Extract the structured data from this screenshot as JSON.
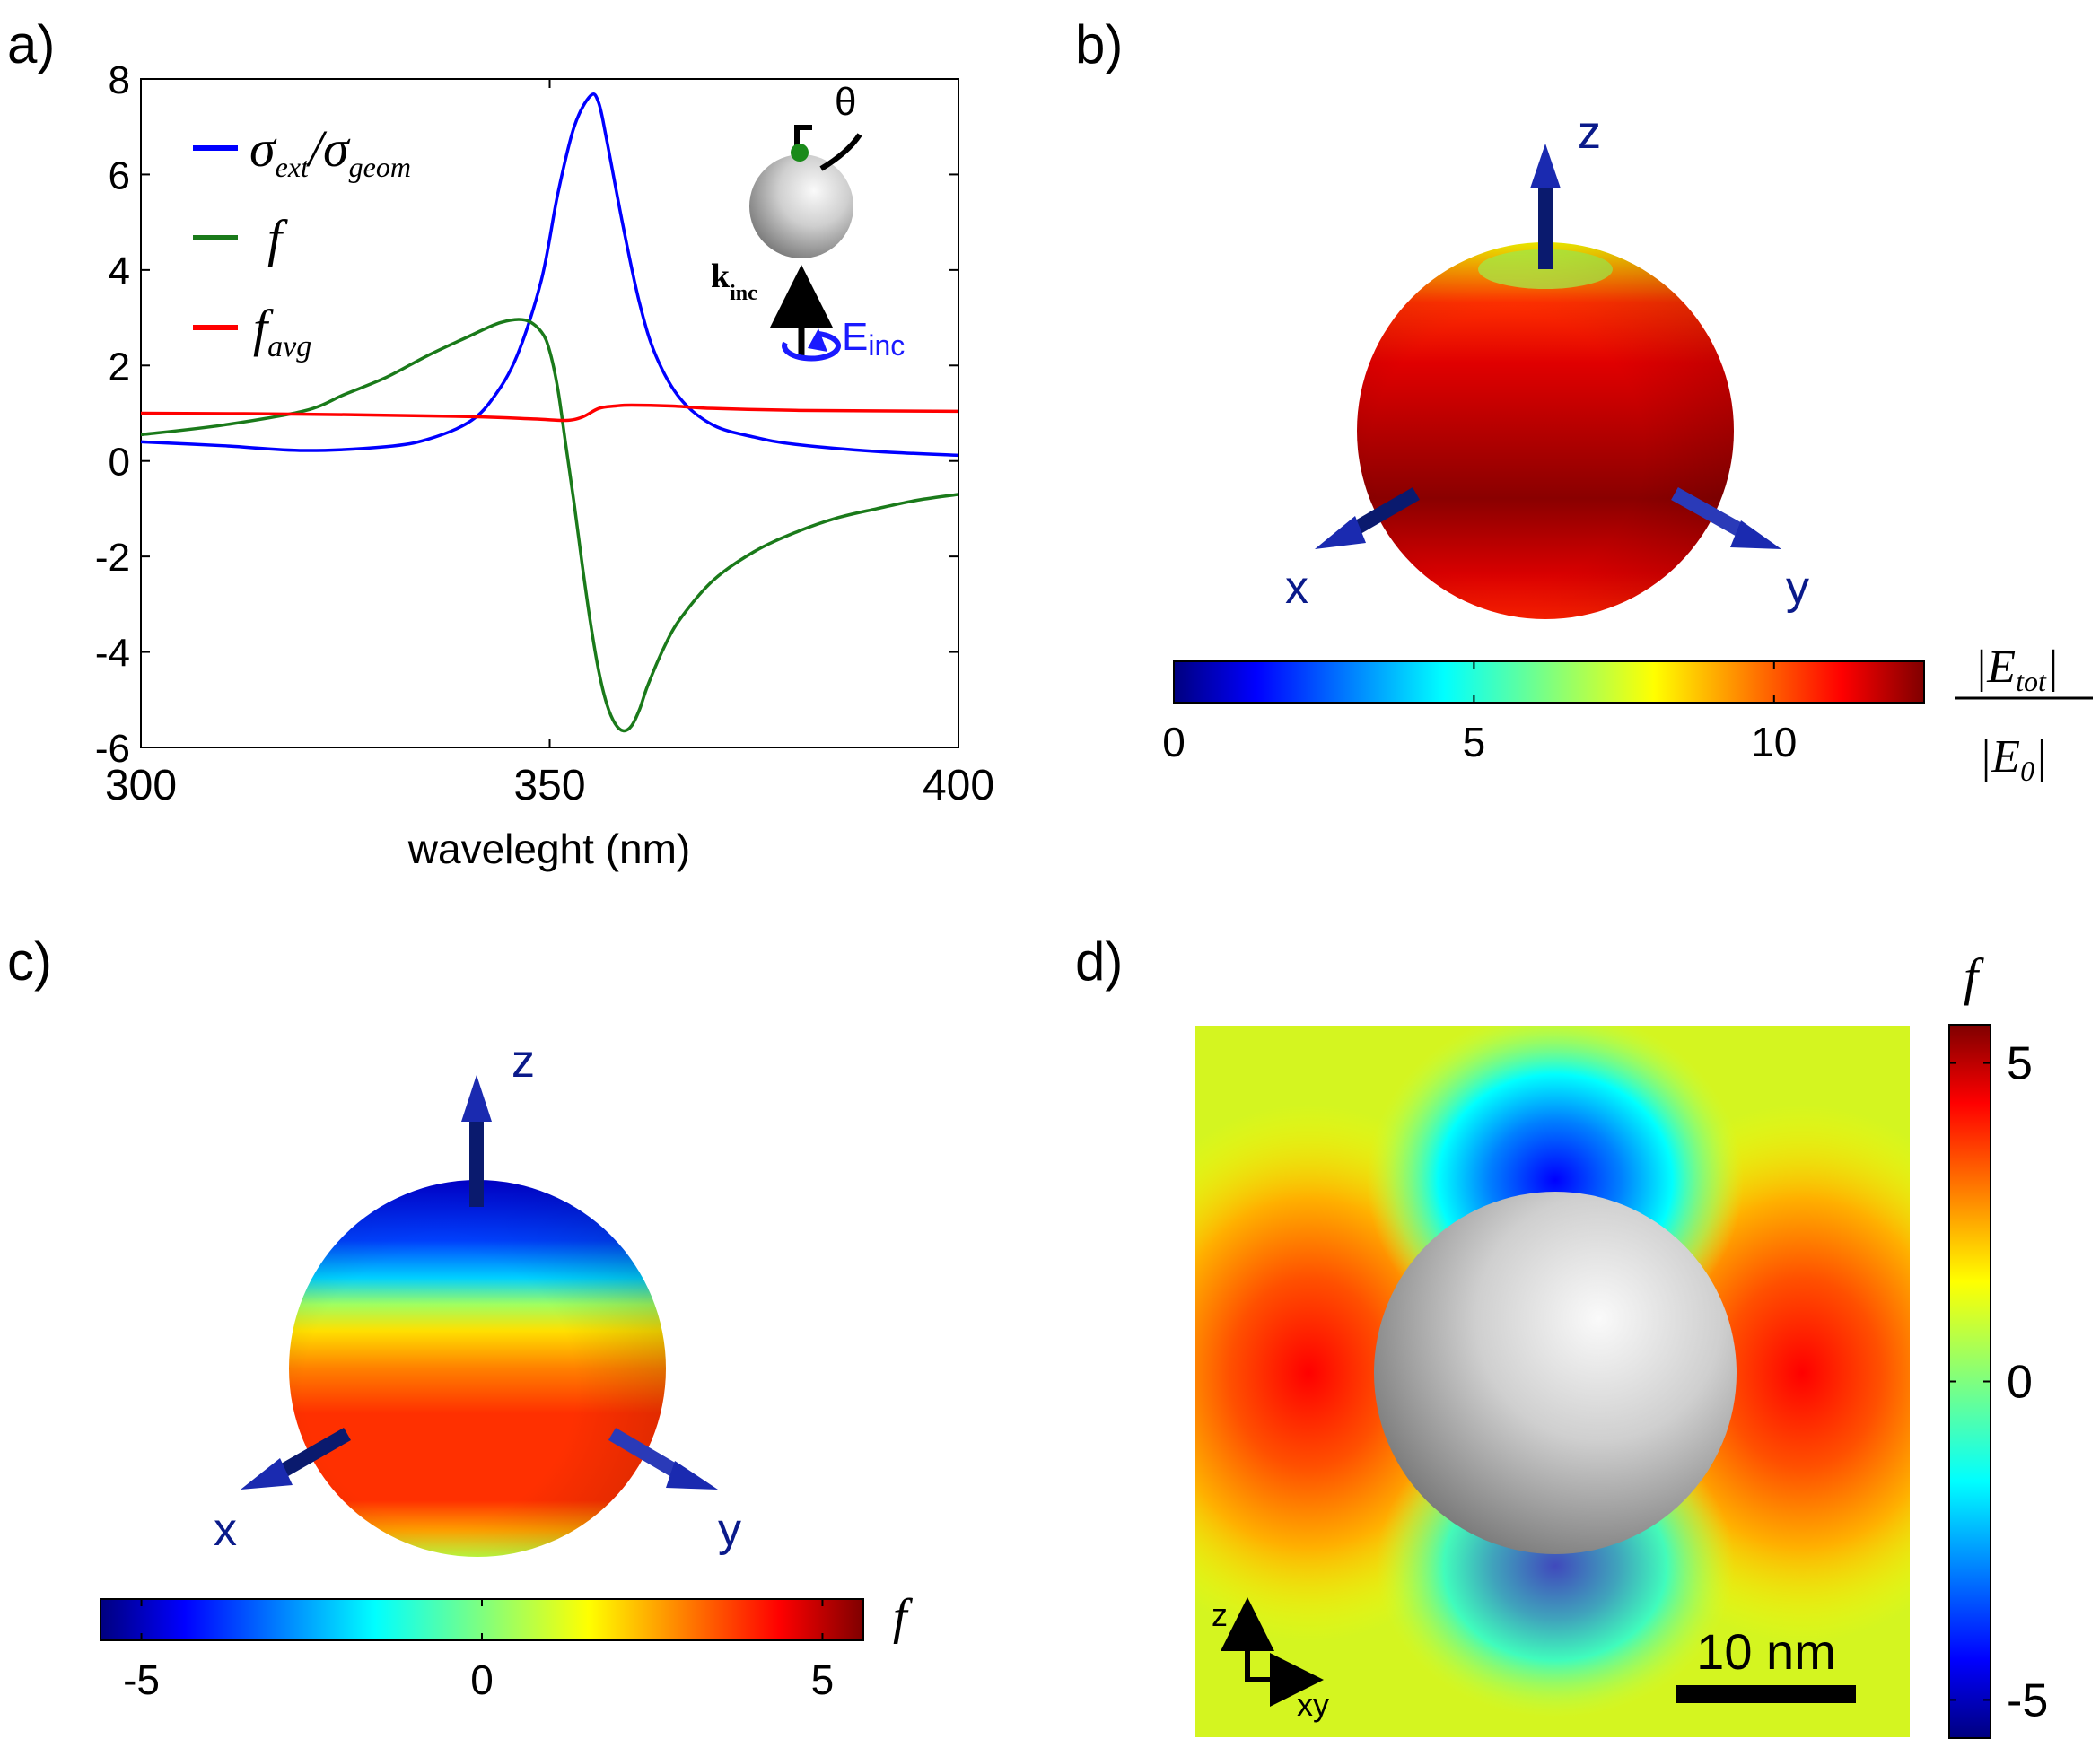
{
  "panels": {
    "a": {
      "label": "a)"
    },
    "b": {
      "label": "b)"
    },
    "c": {
      "label": "c)"
    },
    "d": {
      "label": "d)"
    }
  },
  "chart_data": [
    {
      "type": "line",
      "panel": "a",
      "xlabel": "waveleght (nm)",
      "ylabel": "",
      "xlim": [
        300,
        400
      ],
      "ylim": [
        -6,
        8
      ],
      "xticks": [
        300,
        350,
        400
      ],
      "yticks": [
        -6,
        -4,
        -2,
        0,
        2,
        4,
        6,
        8
      ],
      "grid": false,
      "legend_position": "top-left",
      "series": [
        {
          "name": "σext/σgeom",
          "legend_main": "σ",
          "legend_sub1": "ext",
          "legend_sep": "/σ",
          "legend_sub2": "geom",
          "color": "#0000ff",
          "x": [
            300,
            310,
            320,
            330,
            335,
            340,
            343,
            346,
            349,
            351,
            353,
            355,
            356,
            357,
            359,
            361,
            363,
            366,
            370,
            375,
            380,
            390,
            400
          ],
          "y": [
            0.4,
            0.32,
            0.22,
            0.3,
            0.45,
            0.8,
            1.3,
            2.2,
            3.8,
            5.6,
            7.0,
            7.65,
            7.5,
            6.7,
            4.9,
            3.3,
            2.2,
            1.3,
            0.75,
            0.5,
            0.35,
            0.2,
            0.12
          ]
        },
        {
          "name": "f",
          "legend_main": "f",
          "color": "#1a7a1a",
          "x": [
            300,
            310,
            320,
            325,
            330,
            335,
            340,
            344,
            347,
            349,
            350,
            351,
            352,
            353,
            354,
            355,
            356,
            357,
            358,
            359,
            360,
            361,
            362,
            364,
            366,
            370,
            375,
            380,
            385,
            390,
            395,
            400
          ],
          "y": [
            0.55,
            0.75,
            1.05,
            1.4,
            1.75,
            2.2,
            2.6,
            2.9,
            2.95,
            2.7,
            2.3,
            1.5,
            0.3,
            -0.9,
            -2.2,
            -3.4,
            -4.4,
            -5.1,
            -5.5,
            -5.65,
            -5.55,
            -5.2,
            -4.7,
            -3.9,
            -3.3,
            -2.5,
            -1.9,
            -1.5,
            -1.2,
            -1.0,
            -0.82,
            -0.7
          ]
        },
        {
          "name": "favg",
          "legend_main": "f",
          "legend_sub1": "avg",
          "color": "#ff0000",
          "x": [
            300,
            320,
            340,
            348,
            352,
            354,
            356,
            358,
            360,
            365,
            370,
            380,
            400
          ],
          "y": [
            1.0,
            0.98,
            0.93,
            0.88,
            0.85,
            0.92,
            1.1,
            1.15,
            1.17,
            1.15,
            1.1,
            1.06,
            1.04
          ]
        }
      ],
      "annotations": {
        "angle": "θ",
        "k_main": "k",
        "k_sub": "inc",
        "E_main": "E",
        "E_sub": "inc"
      }
    },
    {
      "type": "heatmap",
      "panel": "b",
      "description_axes": [
        "x",
        "y",
        "z"
      ],
      "colorbar": {
        "min": 0,
        "max": 12.5,
        "ticks": [
          0,
          5,
          10
        ],
        "label_num_main": "E",
        "label_num_sub": "tot",
        "label_den_main": "E",
        "label_den_sub": "0"
      }
    },
    {
      "type": "heatmap",
      "panel": "c",
      "description_axes": [
        "x",
        "y",
        "z"
      ],
      "colorbar": {
        "min": -5.6,
        "max": 5.6,
        "ticks": [
          -5,
          0,
          5
        ],
        "label": "f"
      }
    },
    {
      "type": "heatmap",
      "panel": "d",
      "axis_z": "z",
      "axis_xy": "xy",
      "scalebar": "10 nm",
      "colorbar": {
        "min": -5.6,
        "max": 5.6,
        "ticks": [
          5,
          0,
          -5
        ],
        "label": "f"
      }
    }
  ],
  "colors": {
    "arrow": "#0a1a6e",
    "axis_text": "#0a1a8a",
    "jet": [
      "#00007f",
      "#0000ff",
      "#007fff",
      "#00ffff",
      "#7fff7f",
      "#ffff00",
      "#ff7f00",
      "#ff0000",
      "#7f0000"
    ]
  }
}
